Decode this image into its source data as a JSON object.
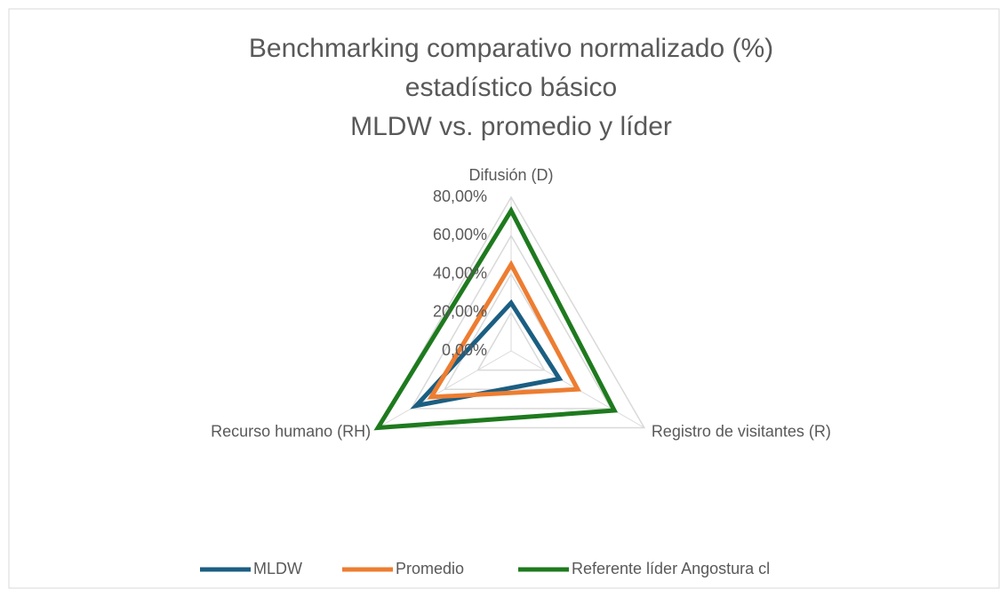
{
  "chart_data": {
    "type": "radar",
    "title": [
      "Benchmarking comparativo normalizado (%)",
      "estadístico básico",
      "MLDW vs. promedio y líder"
    ],
    "categories": [
      "Difusión (D)",
      "Registro de visitantes (R)",
      "Recurso humano (RH)"
    ],
    "series": [
      {
        "name": "MLDW",
        "color": "#1b5e82",
        "values": [
          25,
          29,
          57
        ]
      },
      {
        "name": "Promedio",
        "color": "#ed7d31",
        "values": [
          45,
          40,
          48
        ]
      },
      {
        "name": "Referente líder Angostura cl",
        "color": "#1e7a1e",
        "values": [
          73,
          62,
          80
        ]
      }
    ],
    "ylim": [
      0,
      80
    ],
    "yticks": [
      {
        "value": 0,
        "label": "0,00%"
      },
      {
        "value": 20,
        "label": "20,00%"
      },
      {
        "value": 40,
        "label": "40,00%"
      },
      {
        "value": 60,
        "label": "60,00%"
      },
      {
        "value": 80,
        "label": "80,00%"
      }
    ],
    "grid": true,
    "legend": "bottom"
  }
}
